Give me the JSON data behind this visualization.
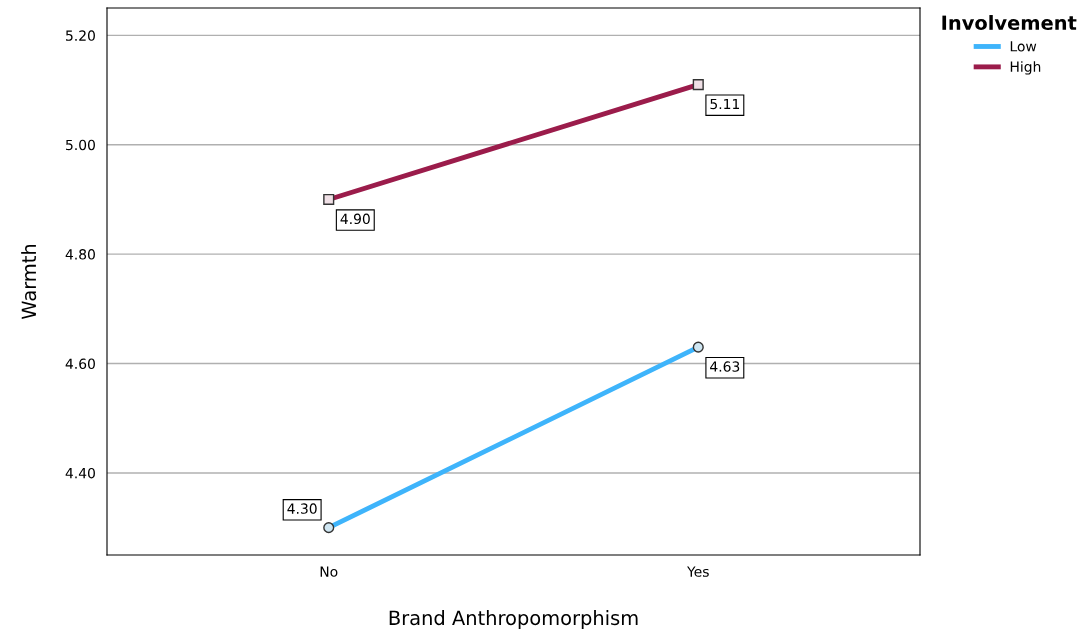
{
  "chart_data": {
    "type": "line",
    "xlabel": "Brand Anthropomorphism",
    "ylabel": "Warmth",
    "legend_title": "Involvement",
    "categories": [
      "No",
      "Yes"
    ],
    "series": [
      {
        "name": "Low",
        "color": "#3eb4fb",
        "values": [
          4.3,
          4.63
        ],
        "value_labels": [
          "4.30",
          "4.63"
        ],
        "marker": "circle"
      },
      {
        "name": "High",
        "color": "#9b1c4b",
        "values": [
          4.9,
          5.11
        ],
        "value_labels": [
          "4.90",
          "5.11"
        ],
        "marker": "square"
      }
    ],
    "ylim": [
      4.25,
      5.25
    ],
    "yticks": [
      {
        "value": 4.4,
        "label": "4.40"
      },
      {
        "value": 4.6,
        "label": "4.60"
      },
      {
        "value": 4.8,
        "label": "4.80"
      },
      {
        "value": 5.0,
        "label": "5.00"
      },
      {
        "value": 5.2,
        "label": "5.20"
      }
    ],
    "grid": "y",
    "legend": "top right",
    "line_style": "solid"
  }
}
